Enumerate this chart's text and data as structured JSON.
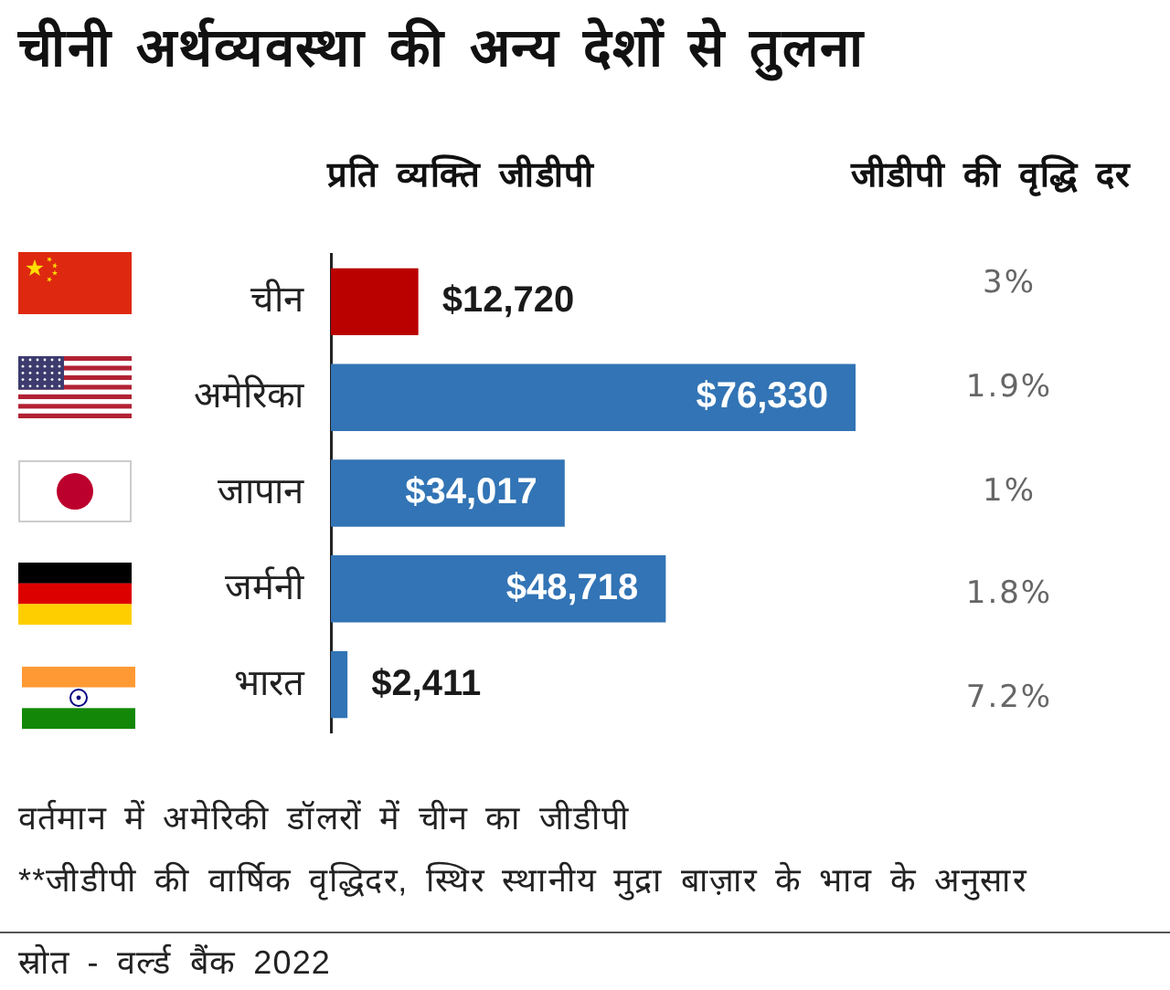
{
  "chart_data": [
    {
      "type": "bar",
      "orientation": "horizontal",
      "title": "चीनी अर्थव्यवस्था की अन्य देशों से तुलना",
      "xlabel": "प्रति व्यक्ति जीडीपी",
      "categories": [
        "चीन",
        "अमेरिका",
        "जापान",
        "जर्मनी",
        "भारत"
      ],
      "values": [
        12720,
        76330,
        34017,
        48718,
        2411
      ],
      "colors": [
        "#bb0000",
        "#3274b5",
        "#3274b5",
        "#3274b5",
        "#3274b5"
      ],
      "value_labels": [
        "$12,720",
        "$76,330",
        "$34,017",
        "$48,718",
        "$2,411"
      ],
      "tick_labels": "y",
      "annotations": [
        "वर्तमान में अमेरिकी डॉलरों में चीन का जीडीपी",
        "**जीडीपी की वार्षिक वृद्धिदर, स्थिर स्थानीय मुद्रा बाज़ार के भाव के अनुसार",
        "स्रोत - वर्ल्ड बैंक 2022"
      ]
    },
    {
      "type": "other",
      "title": "जीडीपी की वृद्धि दर",
      "values": [
        3,
        1.9,
        1,
        1.8,
        7.2
      ],
      "value_labels": [
        "3%",
        "1.9%",
        "1%",
        "1.8%",
        "7.2%"
      ]
    }
  ]
}
